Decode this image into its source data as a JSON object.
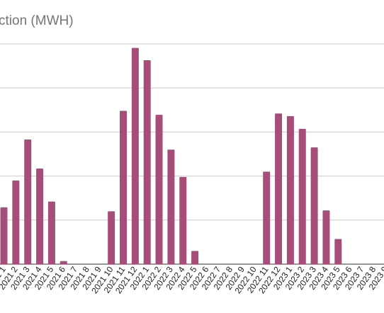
{
  "chart_data": {
    "type": "bar",
    "title": "ction (MWH)",
    "color": "#A64D79",
    "grid": true,
    "ylim": [
      0,
      5
    ],
    "categories": [
      "2021 1",
      "2021 2",
      "2021 3",
      "2021 4",
      "2021 5",
      "2021 6",
      "2021 7",
      "2021 8",
      "2021 9",
      "2021 10",
      "2021 11",
      "2021 12",
      "2022 1",
      "2022 2",
      "2022 3",
      "2022 4",
      "2022 5",
      "2022 6",
      "2022 7",
      "2022 8",
      "2022 9",
      "2022 10",
      "2022 11",
      "2022 12",
      "2023 1",
      "2023 2",
      "2023 3",
      "2023 4",
      "2023 5",
      "2023 6",
      "2023 7",
      "2023 8",
      "2023 9"
    ],
    "values": [
      1.29,
      1.9,
      2.83,
      2.17,
      1.42,
      0.07,
      0,
      0,
      0,
      1.2,
      3.48,
      4.91,
      4.63,
      3.39,
      2.6,
      1.98,
      0.3,
      0,
      0,
      0,
      0,
      0,
      2.1,
      3.42,
      3.36,
      3.07,
      2.65,
      1.22,
      0.57,
      0,
      0,
      0,
      0
    ]
  }
}
